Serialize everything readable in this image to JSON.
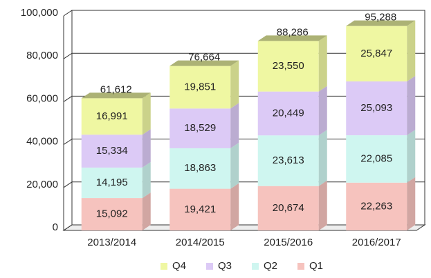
{
  "chart_data": {
    "type": "stacked-bar-3d",
    "categories": [
      "2013/2014",
      "2014/2015",
      "2015/2016",
      "2016/2017"
    ],
    "series": [
      {
        "name": "Q1",
        "color": "#f6c3be",
        "values": [
          15092,
          19421,
          20674,
          22263
        ],
        "value_labels": [
          "15,092",
          "19,421",
          "20,674",
          "22,263"
        ]
      },
      {
        "name": "Q2",
        "color": "#cff6f0",
        "values": [
          14195,
          18863,
          23613,
          22085
        ],
        "value_labels": [
          "14,195",
          "18,863",
          "23,613",
          "22,085"
        ]
      },
      {
        "name": "Q3",
        "color": "#dccaf6",
        "values": [
          15334,
          18529,
          20449,
          25093
        ],
        "value_labels": [
          "15,334",
          "18,529",
          "20,449",
          "25,093"
        ]
      },
      {
        "name": "Q4",
        "color": "#eff7a2",
        "values": [
          16991,
          19851,
          23550,
          25847
        ],
        "value_labels": [
          "16,991",
          "19,851",
          "23,550",
          "25,847"
        ]
      }
    ],
    "total_labels": [
      "61,612",
      "76,664",
      "88,286",
      "95,288"
    ],
    "ylim": [
      0,
      100000
    ],
    "yticks": [
      0,
      {
        "value": 20000,
        "label": "20,000"
      },
      {
        "value": 40000,
        "label": "40,000"
      },
      {
        "value": 60000,
        "label": "60,000"
      },
      {
        "value": 80000,
        "label": "80,000"
      },
      {
        "value": 100000,
        "label": "100,000"
      }
    ],
    "grid": true
  }
}
